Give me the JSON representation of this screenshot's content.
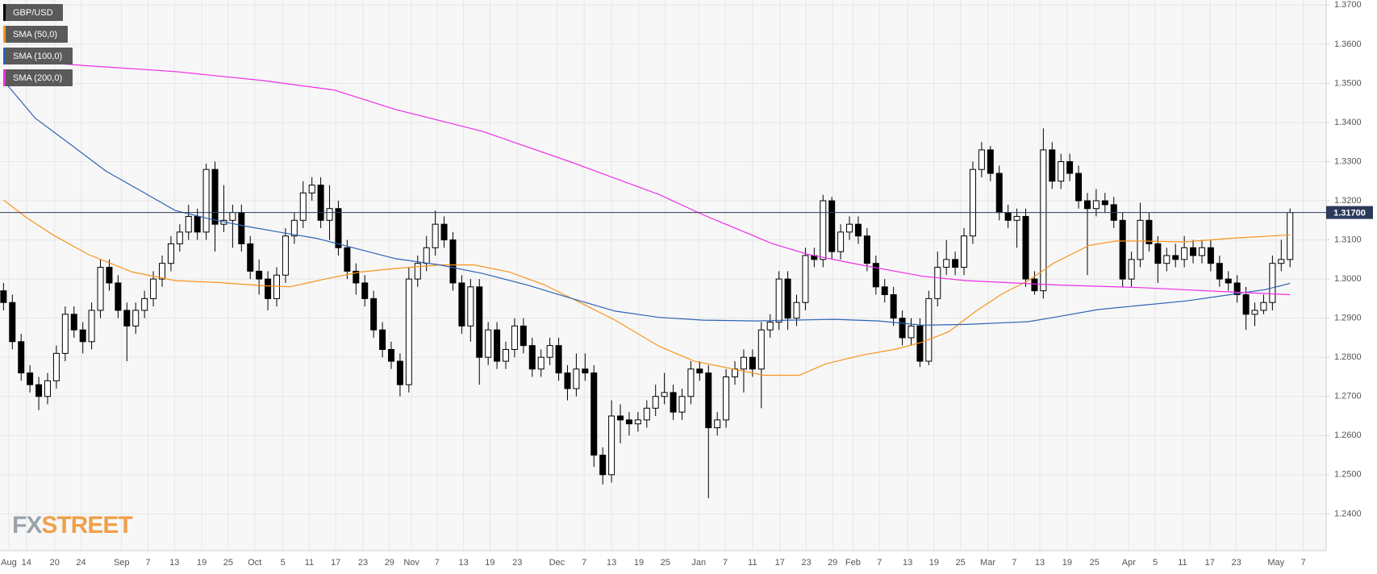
{
  "chart_data": {
    "type": "candlestick",
    "legend": "top-left",
    "grid": true,
    "xlim": [
      -0.4,
      150.1
    ],
    "ylim": [
      1.2306,
      1.3713
    ],
    "xticks": [
      {
        "value": 0.6,
        "label": "Aug"
      },
      {
        "value": 2.6,
        "label": "14"
      },
      {
        "value": 5.8,
        "label": "20"
      },
      {
        "value": 8.8,
        "label": "24"
      },
      {
        "value": 13.4,
        "label": "Sep"
      },
      {
        "value": 16.4,
        "label": "7"
      },
      {
        "value": 19.4,
        "label": "13"
      },
      {
        "value": 22.5,
        "label": "19"
      },
      {
        "value": 25.5,
        "label": "25"
      },
      {
        "value": 28.5,
        "label": "Oct"
      },
      {
        "value": 31.7,
        "label": "5"
      },
      {
        "value": 34.7,
        "label": "11"
      },
      {
        "value": 37.7,
        "label": "17"
      },
      {
        "value": 40.8,
        "label": "23"
      },
      {
        "value": 43.8,
        "label": "29"
      },
      {
        "value": 46.3,
        "label": "Nov"
      },
      {
        "value": 49.2,
        "label": "7"
      },
      {
        "value": 52.2,
        "label": "13"
      },
      {
        "value": 55.2,
        "label": "19"
      },
      {
        "value": 58.3,
        "label": "23"
      },
      {
        "value": 62.8,
        "label": "Dec"
      },
      {
        "value": 65.9,
        "label": "7"
      },
      {
        "value": 69,
        "label": "13"
      },
      {
        "value": 72.1,
        "label": "19"
      },
      {
        "value": 75.1,
        "label": "25"
      },
      {
        "value": 78.9,
        "label": "Jan"
      },
      {
        "value": 81.9,
        "label": "7"
      },
      {
        "value": 85,
        "label": "11"
      },
      {
        "value": 88.1,
        "label": "17"
      },
      {
        "value": 91.1,
        "label": "23"
      },
      {
        "value": 94.1,
        "label": "29"
      },
      {
        "value": 96.4,
        "label": "Feb"
      },
      {
        "value": 99.4,
        "label": "7"
      },
      {
        "value": 102.6,
        "label": "13"
      },
      {
        "value": 105.6,
        "label": "19"
      },
      {
        "value": 108.6,
        "label": "25"
      },
      {
        "value": 111.7,
        "label": "Mar"
      },
      {
        "value": 114.7,
        "label": "7"
      },
      {
        "value": 117.6,
        "label": "13"
      },
      {
        "value": 120.7,
        "label": "19"
      },
      {
        "value": 123.8,
        "label": "25"
      },
      {
        "value": 127.7,
        "label": "Apr"
      },
      {
        "value": 130.7,
        "label": "5"
      },
      {
        "value": 133.8,
        "label": "11"
      },
      {
        "value": 136.9,
        "label": "17"
      },
      {
        "value": 139.9,
        "label": "23"
      },
      {
        "value": 144.4,
        "label": "May"
      },
      {
        "value": 147.5,
        "label": "7"
      }
    ],
    "yticks": [
      {
        "value": 1.24,
        "label": "1.2400"
      },
      {
        "value": 1.25,
        "label": "1.2500"
      },
      {
        "value": 1.26,
        "label": "1.2600"
      },
      {
        "value": 1.27,
        "label": "1.2700"
      },
      {
        "value": 1.28,
        "label": "1.2800"
      },
      {
        "value": 1.29,
        "label": "1.2900"
      },
      {
        "value": 1.3,
        "label": "1.3000"
      },
      {
        "value": 1.31,
        "label": "1.3100"
      },
      {
        "value": 1.32,
        "label": "1.3200"
      },
      {
        "value": 1.33,
        "label": "1.3300"
      },
      {
        "value": 1.34,
        "label": "1.3400"
      },
      {
        "value": 1.35,
        "label": "1.3500"
      },
      {
        "value": 1.36,
        "label": "1.3600"
      },
      {
        "value": 1.37,
        "label": "1.3700"
      }
    ],
    "price_line": {
      "value": 1.317,
      "label": "1.31700",
      "color": "#2b3a5c"
    },
    "logo": {
      "part1": "FX",
      "part2": "STREET"
    },
    "series": [
      {
        "name": "GBP/USD",
        "color": "#000000",
        "up_color": "#ffffff",
        "down_color": "#000000",
        "open": [
          1.297,
          1.294,
          1.284,
          1.276,
          1.273,
          1.27,
          1.274,
          1.281,
          1.291,
          1.287,
          1.284,
          1.292,
          1.303,
          1.299,
          1.292,
          1.288,
          1.292,
          1.295,
          1.3,
          1.304,
          1.309,
          1.312,
          1.316,
          1.312,
          1.328,
          1.314,
          1.315,
          1.317,
          1.309,
          1.302,
          1.3,
          1.295,
          1.301,
          1.311,
          1.315,
          1.322,
          1.324,
          1.315,
          1.318,
          1.308,
          1.302,
          1.299,
          1.295,
          1.287,
          1.282,
          1.279,
          1.273,
          1.3,
          1.304,
          1.308,
          1.314,
          1.31,
          1.299,
          1.288,
          1.298,
          1.28,
          1.287,
          1.279,
          1.282,
          1.288,
          1.283,
          1.277,
          1.28,
          1.283,
          1.276,
          1.272,
          1.277,
          1.276,
          1.255,
          1.25,
          1.265,
          1.264,
          1.263,
          1.264,
          1.267,
          1.27,
          1.271,
          1.266,
          1.27,
          1.277,
          1.276,
          1.262,
          1.264,
          1.275,
          1.277,
          1.28,
          1.277,
          1.287,
          1.289,
          1.3,
          1.29,
          1.294,
          1.306,
          1.305,
          1.32,
          1.307,
          1.312,
          1.314,
          1.311,
          1.304,
          1.298,
          1.296,
          1.29,
          1.285,
          1.288,
          1.279,
          1.295,
          1.303,
          1.305,
          1.303,
          1.311,
          1.328,
          1.333,
          1.327,
          1.317,
          1.315,
          1.316,
          1.3,
          1.297,
          1.333,
          1.325,
          1.33,
          1.327,
          1.32,
          1.318,
          1.32,
          1.319,
          1.315,
          1.3,
          1.305,
          1.315,
          1.309,
          1.304,
          1.306,
          1.305,
          1.308,
          1.306,
          1.308,
          1.304,
          1.3,
          1.299,
          1.296,
          1.291,
          1.292,
          1.294,
          1.304,
          1.305
        ],
        "high": [
          1.299,
          1.296,
          1.286,
          1.278,
          1.275,
          1.276,
          1.283,
          1.293,
          1.293,
          1.289,
          1.294,
          1.305,
          1.305,
          1.301,
          1.294,
          1.294,
          1.297,
          1.302,
          1.306,
          1.311,
          1.314,
          1.319,
          1.318,
          1.3295,
          1.33,
          1.324,
          1.319,
          1.319,
          1.311,
          1.305,
          1.302,
          1.303,
          1.313,
          1.317,
          1.325,
          1.326,
          1.326,
          1.324,
          1.32,
          1.31,
          1.304,
          1.301,
          1.297,
          1.289,
          1.284,
          1.281,
          1.303,
          1.306,
          1.311,
          1.3175,
          1.316,
          1.312,
          1.301,
          1.3,
          1.3,
          1.289,
          1.289,
          1.284,
          1.29,
          1.29,
          1.285,
          1.282,
          1.285,
          1.285,
          1.278,
          1.281,
          1.281,
          1.278,
          1.257,
          1.269,
          1.268,
          1.266,
          1.266,
          1.269,
          1.273,
          1.276,
          1.273,
          1.272,
          1.279,
          1.279,
          1.278,
          1.266,
          1.277,
          1.279,
          1.282,
          1.282,
          1.289,
          1.291,
          1.302,
          1.302,
          1.296,
          1.308,
          1.308,
          1.3215,
          1.321,
          1.314,
          1.316,
          1.316,
          1.313,
          1.306,
          1.3,
          1.298,
          1.292,
          1.29,
          1.29,
          1.297,
          1.307,
          1.31,
          1.307,
          1.313,
          1.33,
          1.335,
          1.334,
          1.329,
          1.319,
          1.318,
          1.318,
          1.302,
          1.3385,
          1.335,
          1.332,
          1.332,
          1.329,
          1.322,
          1.323,
          1.322,
          1.321,
          1.317,
          1.307,
          1.3195,
          1.317,
          1.311,
          1.308,
          1.309,
          1.311,
          1.31,
          1.31,
          1.31,
          1.306,
          1.302,
          1.301,
          1.298,
          1.294,
          1.296,
          1.306,
          1.31,
          1.318
        ],
        "low": [
          1.292,
          1.282,
          1.274,
          1.271,
          1.2665,
          1.268,
          1.272,
          1.279,
          1.285,
          1.281,
          1.282,
          1.29,
          1.297,
          1.29,
          1.279,
          1.286,
          1.29,
          1.293,
          1.298,
          1.302,
          1.307,
          1.31,
          1.31,
          1.31,
          1.307,
          1.312,
          1.308,
          1.307,
          1.3,
          1.296,
          1.292,
          1.293,
          1.299,
          1.309,
          1.313,
          1.32,
          1.313,
          1.31,
          1.306,
          1.3,
          1.296,
          1.293,
          1.285,
          1.28,
          1.277,
          1.27,
          1.271,
          1.298,
          1.302,
          1.306,
          1.308,
          1.297,
          1.286,
          1.284,
          1.273,
          1.278,
          1.277,
          1.277,
          1.28,
          1.281,
          1.275,
          1.275,
          1.278,
          1.274,
          1.269,
          1.27,
          1.274,
          1.252,
          1.2475,
          1.248,
          1.258,
          1.26,
          1.261,
          1.262,
          1.265,
          1.268,
          1.264,
          1.264,
          1.268,
          1.274,
          1.244,
          1.26,
          1.262,
          1.273,
          1.271,
          1.275,
          1.267,
          1.285,
          1.287,
          1.287,
          1.288,
          1.292,
          1.303,
          1.303,
          1.305,
          1.305,
          1.31,
          1.309,
          1.302,
          1.296,
          1.294,
          1.288,
          1.283,
          1.283,
          1.2775,
          1.278,
          1.293,
          1.301,
          1.301,
          1.301,
          1.309,
          1.326,
          1.325,
          1.315,
          1.313,
          1.308,
          1.298,
          1.296,
          1.295,
          1.323,
          1.323,
          1.325,
          1.318,
          1.301,
          1.316,
          1.317,
          1.313,
          1.298,
          1.298,
          1.303,
          1.307,
          1.299,
          1.302,
          1.303,
          1.303,
          1.304,
          1.304,
          1.302,
          1.298,
          1.297,
          1.294,
          1.287,
          1.288,
          1.291,
          1.292,
          1.302,
          1.303
        ],
        "close": [
          1.294,
          1.284,
          1.276,
          1.273,
          1.27,
          1.274,
          1.281,
          1.291,
          1.287,
          1.284,
          1.292,
          1.303,
          1.299,
          1.292,
          1.288,
          1.292,
          1.295,
          1.3,
          1.304,
          1.309,
          1.312,
          1.316,
          1.312,
          1.328,
          1.314,
          1.315,
          1.317,
          1.309,
          1.302,
          1.3,
          1.295,
          1.301,
          1.311,
          1.315,
          1.322,
          1.324,
          1.315,
          1.318,
          1.308,
          1.302,
          1.299,
          1.295,
          1.287,
          1.282,
          1.279,
          1.273,
          1.3,
          1.304,
          1.308,
          1.314,
          1.31,
          1.299,
          1.288,
          1.298,
          1.28,
          1.287,
          1.279,
          1.282,
          1.288,
          1.283,
          1.277,
          1.28,
          1.283,
          1.276,
          1.272,
          1.277,
          1.276,
          1.255,
          1.25,
          1.265,
          1.264,
          1.263,
          1.264,
          1.267,
          1.27,
          1.271,
          1.266,
          1.27,
          1.277,
          1.276,
          1.262,
          1.264,
          1.275,
          1.277,
          1.28,
          1.277,
          1.287,
          1.289,
          1.3,
          1.29,
          1.294,
          1.306,
          1.305,
          1.32,
          1.307,
          1.312,
          1.314,
          1.311,
          1.304,
          1.298,
          1.296,
          1.29,
          1.285,
          1.288,
          1.279,
          1.295,
          1.303,
          1.305,
          1.303,
          1.311,
          1.328,
          1.333,
          1.327,
          1.317,
          1.315,
          1.316,
          1.3,
          1.297,
          1.333,
          1.325,
          1.33,
          1.327,
          1.32,
          1.318,
          1.32,
          1.319,
          1.315,
          1.3,
          1.305,
          1.315,
          1.309,
          1.304,
          1.306,
          1.305,
          1.308,
          1.306,
          1.308,
          1.304,
          1.3,
          1.299,
          1.296,
          1.291,
          1.292,
          1.294,
          1.304,
          1.305,
          1.317
        ]
      },
      {
        "name": "SMA (50,0)",
        "color": "#f7941d",
        "x": [
          0,
          2.6,
          5.6,
          9.6,
          14.6,
          19.5,
          24.5,
          29.5,
          32.5,
          36.5,
          40.5,
          44.5,
          49.5,
          53.4,
          57.4,
          61.4,
          65.4,
          69.4,
          74.4,
          78.4,
          82.4,
          86.3,
          90.3,
          93.3,
          97.3,
          101.3,
          104.3,
          107.3,
          110.3,
          113.3,
          116.3,
          119.2,
          123.2,
          126.2,
          129.2,
          134.2,
          139.2,
          146
        ],
        "values": [
          1.3202,
          1.3157,
          1.3113,
          1.3063,
          1.3018,
          1.2996,
          1.2991,
          1.2983,
          1.298,
          1.3,
          1.3018,
          1.3027,
          1.3036,
          1.3036,
          1.3018,
          1.2985,
          1.294,
          1.2895,
          1.2828,
          1.279,
          1.2772,
          1.2754,
          1.2754,
          1.2783,
          1.2805,
          1.2821,
          1.2839,
          1.2866,
          1.2917,
          1.2962,
          1.2996,
          1.3041,
          1.3086,
          1.3097,
          1.3097,
          1.3095,
          1.3104,
          1.3113
        ]
      },
      {
        "name": "SMA (100,0)",
        "color": "#2f62b5",
        "x": [
          0,
          3.6,
          7.6,
          11.6,
          15.6,
          19.5,
          23.5,
          27.5,
          31.5,
          35.5,
          39.5,
          44.5,
          49.5,
          54.4,
          59.4,
          64.4,
          69.4,
          74.4,
          79.4,
          85.3,
          89.3,
          94.3,
          99.3,
          104.3,
          109.3,
          116.3,
          119.2,
          124.2,
          129.2,
          134.2,
          139.2,
          143.2,
          146
        ],
        "values": [
          1.3507,
          1.3411,
          1.3344,
          1.3276,
          1.3225,
          1.3175,
          1.3153,
          1.3135,
          1.3119,
          1.3104,
          1.3081,
          1.3052,
          1.3036,
          1.3014,
          1.2985,
          1.2951,
          1.2918,
          1.2902,
          1.2895,
          1.2893,
          1.2895,
          1.2897,
          1.2893,
          1.2882,
          1.2884,
          1.2891,
          1.2902,
          1.2922,
          1.2933,
          1.2944,
          1.296,
          1.2973,
          1.2989
        ]
      },
      {
        "name": "SMA (200,0)",
        "color": "#ee2ee8",
        "x": [
          0,
          9.6,
          19.5,
          29.5,
          37.5,
          44.5,
          54.4,
          64.4,
          74.4,
          79.4,
          87.3,
          91.3,
          97.3,
          104.3,
          109.3,
          119.2,
          129.2,
          139.2,
          146
        ],
        "values": [
          1.3561,
          1.3545,
          1.353,
          1.3507,
          1.3483,
          1.3433,
          1.3377,
          1.3299,
          1.3216,
          1.3164,
          1.309,
          1.3063,
          1.3036,
          1.3007,
          1.2996,
          1.2985,
          1.2978,
          1.2967,
          1.296
        ]
      }
    ]
  }
}
